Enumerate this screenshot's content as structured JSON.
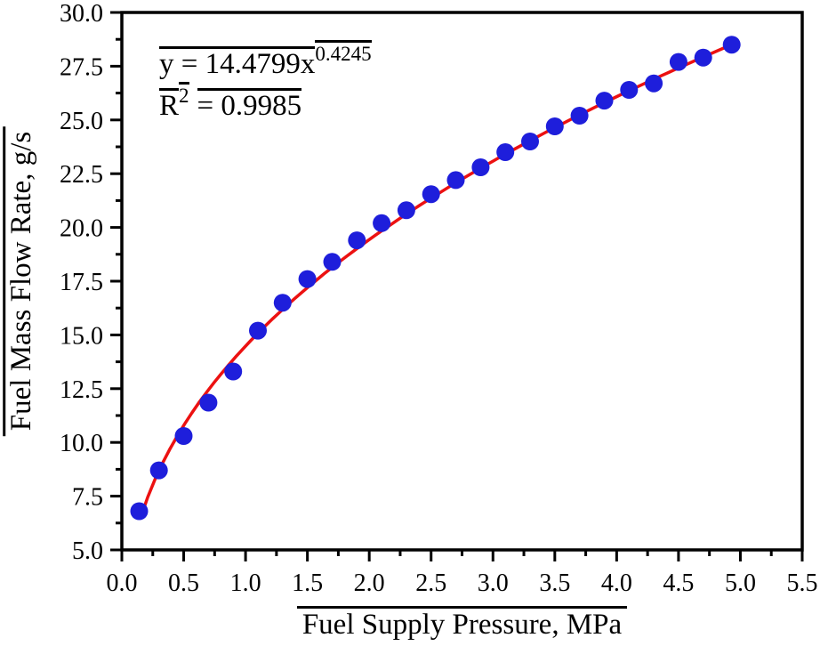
{
  "annotation": {
    "eq_base": "y = 14.4799x",
    "eq_exp": "0.4245",
    "r2_base": "R",
    "r2_exp": "2",
    "r2_rest": "= 0.9985"
  },
  "chart_data": {
    "type": "scatter",
    "title": "",
    "xlabel": "Fuel Supply Pressure, MPa",
    "ylabel": "Fuel Mass Flow Rate, g/s",
    "xlim": [
      0.0,
      5.5
    ],
    "ylim": [
      5.0,
      30.0
    ],
    "x_tick_step": 0.5,
    "y_tick_step": 2.5,
    "x_tick_decimals": 1,
    "y_tick_decimals": 1,
    "x_minor_per_major": 1,
    "y_minor_per_major": 1,
    "grid": false,
    "legend": "none",
    "series": [
      {
        "name": "measured data",
        "type": "scatter",
        "marker": "circle",
        "marker_radius": 10,
        "color": "#1e1edb",
        "points": [
          [
            0.14,
            6.8
          ],
          [
            0.3,
            8.7
          ],
          [
            0.5,
            10.3
          ],
          [
            0.7,
            11.85
          ],
          [
            0.9,
            13.3
          ],
          [
            1.1,
            15.2
          ],
          [
            1.3,
            16.5
          ],
          [
            1.5,
            17.6
          ],
          [
            1.7,
            18.4
          ],
          [
            1.9,
            19.4
          ],
          [
            2.1,
            20.2
          ],
          [
            2.3,
            20.8
          ],
          [
            2.5,
            21.55
          ],
          [
            2.7,
            22.2
          ],
          [
            2.9,
            22.8
          ],
          [
            3.1,
            23.5
          ],
          [
            3.3,
            24.0
          ],
          [
            3.5,
            24.7
          ],
          [
            3.7,
            25.2
          ],
          [
            3.9,
            25.9
          ],
          [
            4.1,
            26.4
          ],
          [
            4.3,
            26.7
          ],
          [
            4.5,
            27.7
          ],
          [
            4.7,
            27.9
          ],
          [
            4.93,
            28.5
          ]
        ]
      },
      {
        "name": "power-law fit",
        "type": "line",
        "color": "#ec1111",
        "fit": {
          "form": "power",
          "a": 14.4799,
          "b": 0.4245,
          "x_start": 0.15,
          "x_end": 4.9
        },
        "equation": "y = 14.4799x^0.4245",
        "r_squared": 0.9985
      }
    ],
    "colors": {
      "axis": "#000000",
      "background": "#ffffff"
    }
  }
}
